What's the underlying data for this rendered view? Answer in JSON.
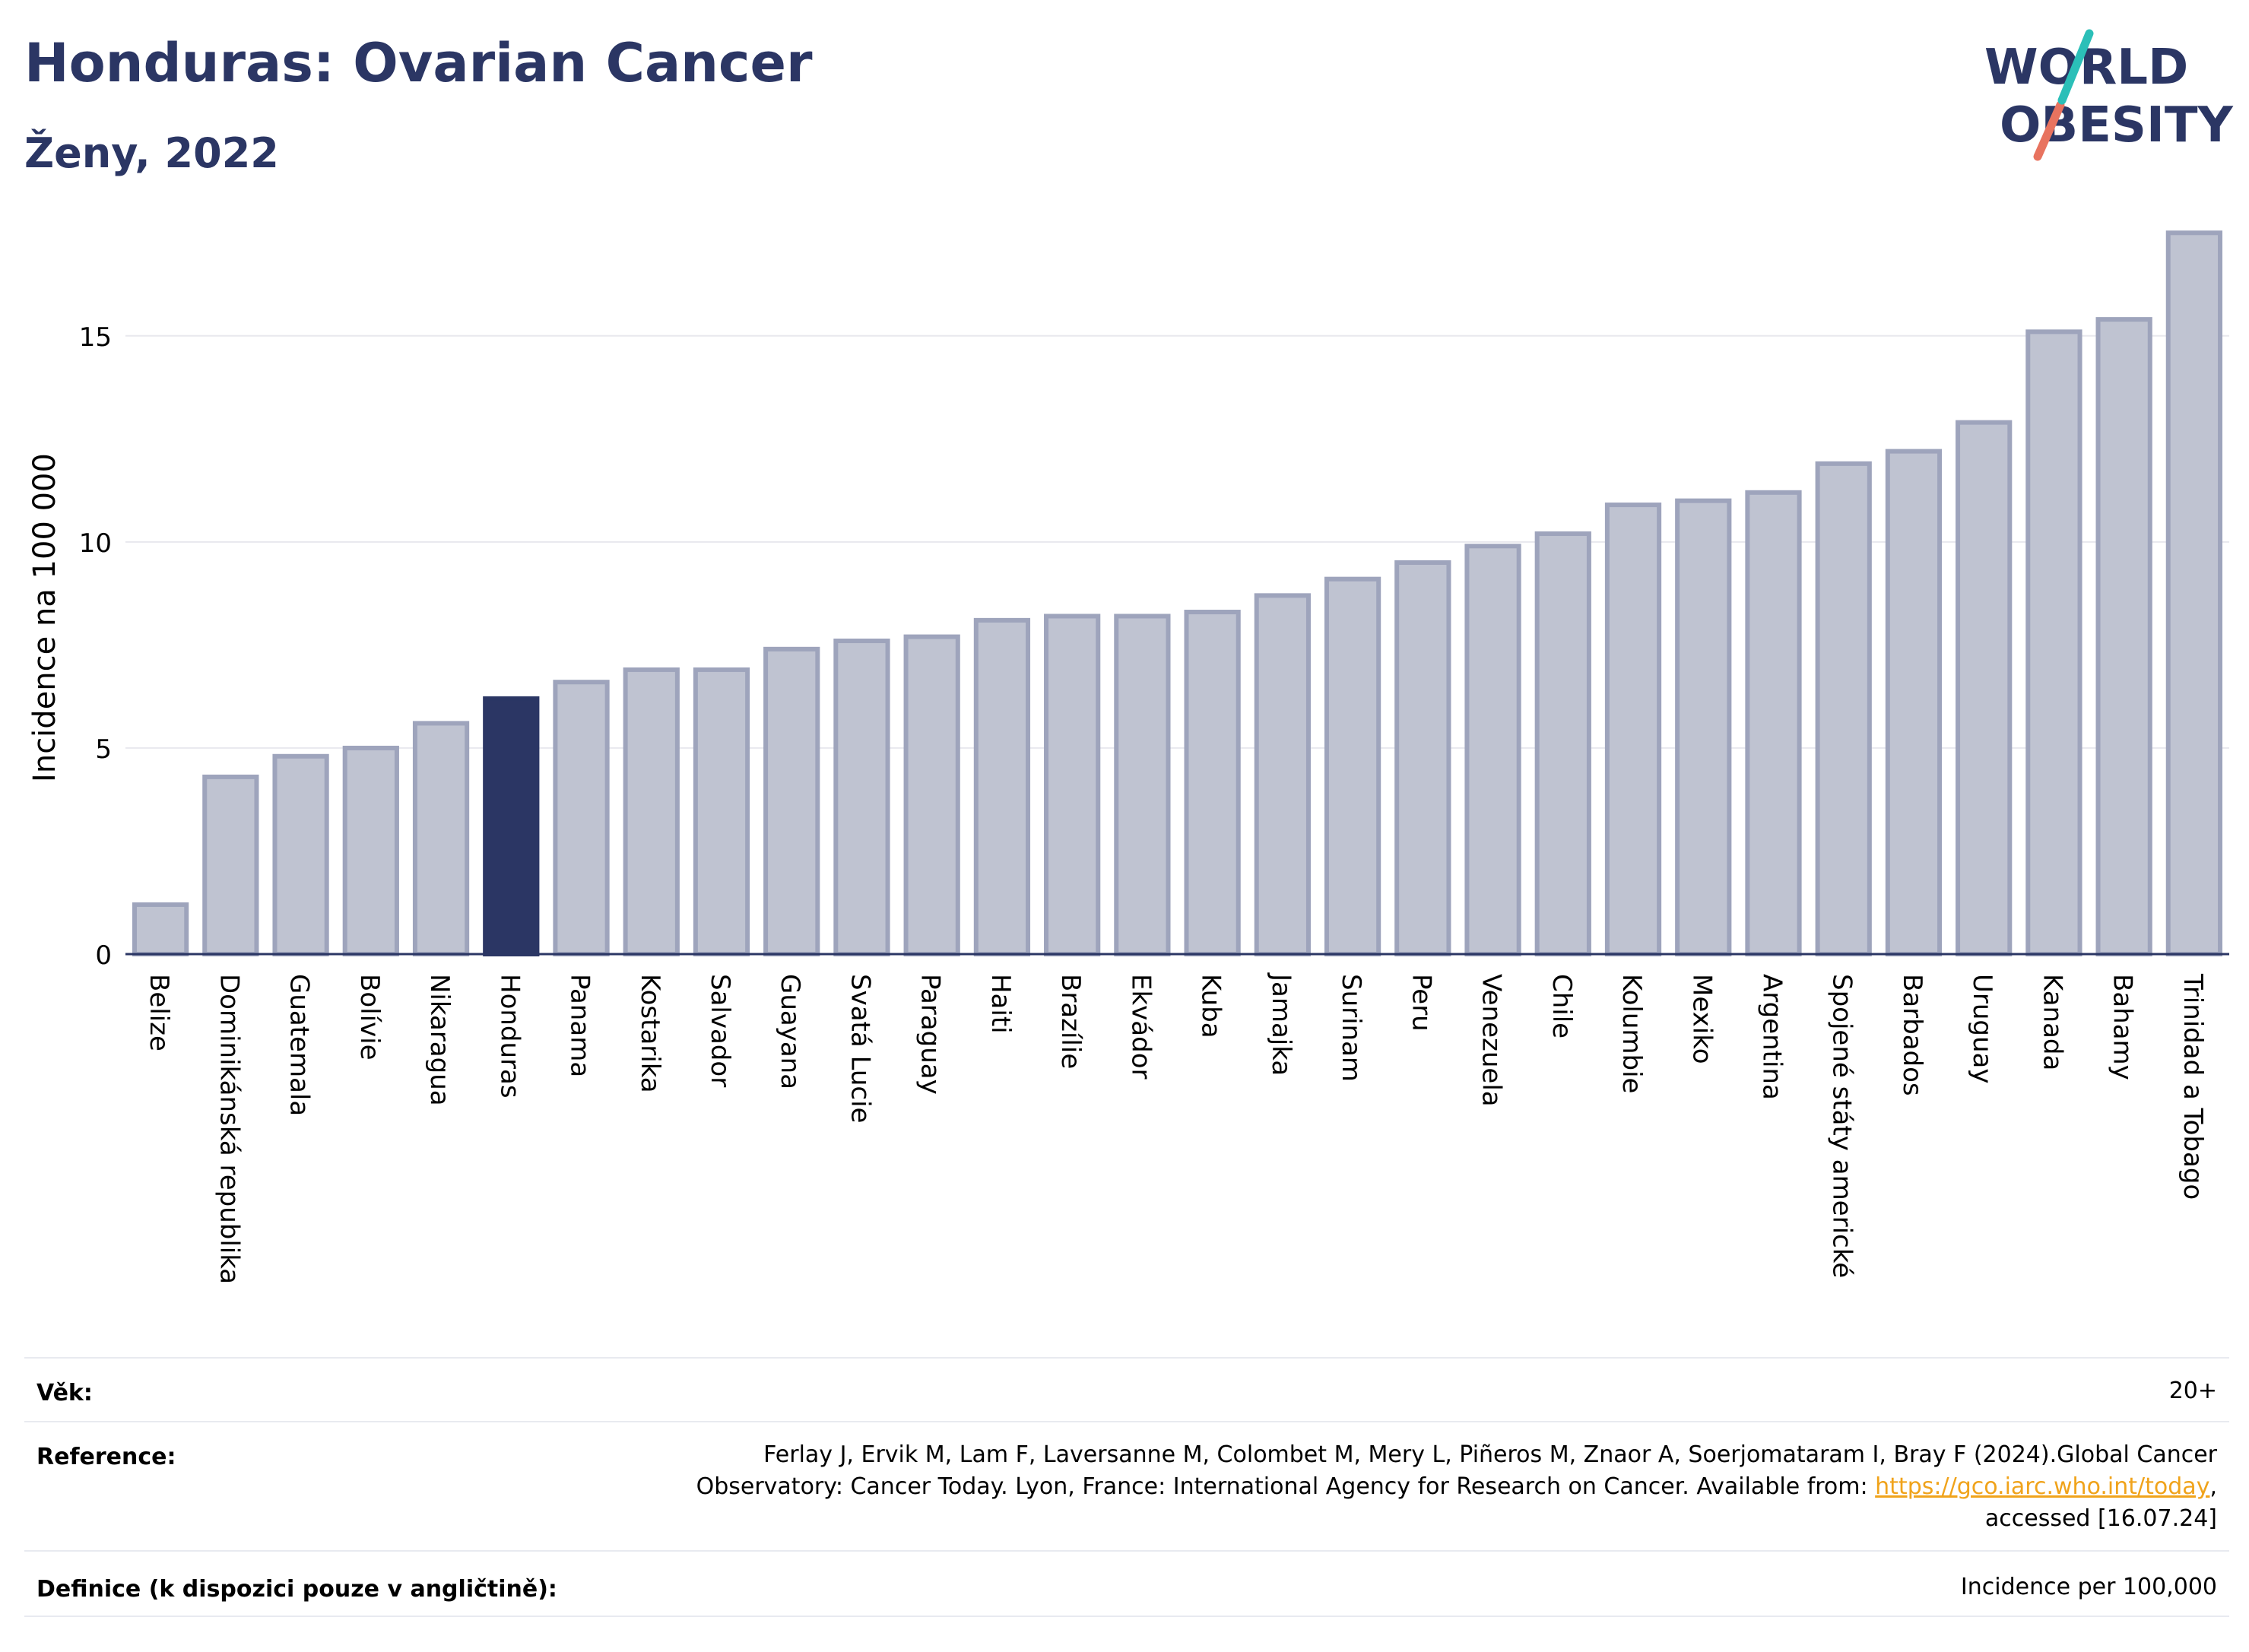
{
  "header": {
    "title": "Honduras: Ovarian Cancer",
    "subtitle": "Ženy, 2022",
    "logo_line1": "WORLD",
    "logo_line2": "OBESITY"
  },
  "colors": {
    "highlight": "#2b3664",
    "bar": "#bfc3d1",
    "bar_border": "#9ea4bc",
    "title": "#2b3664",
    "logo_teal": "#2bbfb8",
    "logo_coral": "#e8735f",
    "link": "#f0a31b"
  },
  "chart_data": {
    "type": "bar",
    "title": "Honduras: Ovarian Cancer",
    "ylabel": "Incidence na 100 000",
    "xlabel": "",
    "ylim": [
      0,
      17.8
    ],
    "yticks": [
      0,
      5,
      10,
      15
    ],
    "grid": true,
    "highlight": "Honduras",
    "categories": [
      "Belize",
      "Dominikánská republika",
      "Guatemala",
      "Bolívie",
      "Nikaragua",
      "Honduras",
      "Panama",
      "Kostarika",
      "Salvador",
      "Guayana",
      "Svatá Lucie",
      "Paraguay",
      "Haiti",
      "Brazílie",
      "Ekvádor",
      "Kuba",
      "Jamajka",
      "Surinam",
      "Peru",
      "Venezuela",
      "Chile",
      "Kolumbie",
      "Mexiko",
      "Argentina",
      "Spojené státy americké",
      "Barbados",
      "Uruguay",
      "Kanada",
      "Bahamy",
      "Trinidad a Tobago"
    ],
    "values": [
      1.2,
      4.3,
      4.8,
      5.0,
      5.6,
      6.2,
      6.6,
      6.9,
      6.9,
      7.4,
      7.6,
      7.7,
      8.1,
      8.2,
      8.2,
      8.3,
      8.7,
      9.1,
      9.5,
      9.9,
      10.2,
      10.9,
      11.0,
      11.2,
      11.9,
      12.2,
      12.9,
      15.1,
      15.4,
      17.5
    ]
  },
  "info": {
    "age_label": "Věk:",
    "age_value": "20+",
    "reference_label": "Reference:",
    "reference_line1": "Ferlay J, Ervik M, Lam F, Laversanne M, Colombet M, Mery L, Piñeros M, Znaor A, Soerjomataram I, Bray F (2024).Global Cancer",
    "reference_line2_prefix": "Observatory: Cancer Today. Lyon, France: International Agency for Research on Cancer. Available from: ",
    "reference_link": "https://gco.iarc.who.int/today",
    "reference_line2_suffix": ",",
    "reference_line3": "accessed [16.07.24]",
    "definition_label": "Definice (k dispozici pouze v angličtině):",
    "definition_value": "Incidence per 100,000"
  }
}
